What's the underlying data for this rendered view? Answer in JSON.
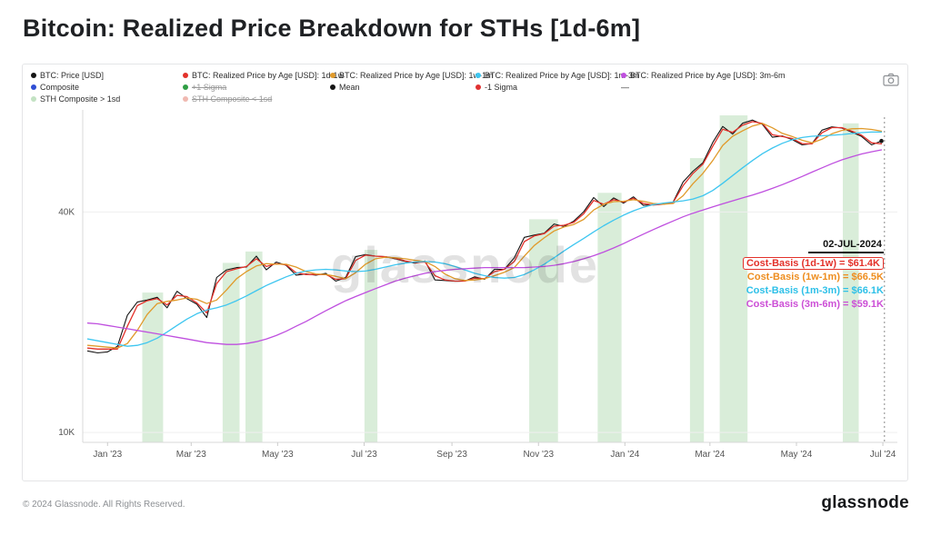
{
  "header": {
    "title": "Bitcoin: Realized Price Breakdown for STHs [1d-6m]"
  },
  "watermark": {
    "text": "glassnode"
  },
  "toolbar": {
    "camera_icon": "camera"
  },
  "legend": {
    "rows": [
      {
        "items": [
          {
            "label": "BTC: Price [USD]",
            "color": "#151515",
            "struck": false
          },
          {
            "label": "BTC: Realized Price by Age [USD]: 1d-1w",
            "color": "#e3312a",
            "struck": false
          },
          {
            "label": "BTC: Realized Price by Age [USD]: 1w-1m",
            "color": "#e09a2a",
            "struck": false
          },
          {
            "label": "BTC: Realized Price by Age [USD]: 1m-3m",
            "color": "#3ec6f0",
            "struck": false
          },
          {
            "label": "BTC: Realized Price by Age [USD]: 3m-6m",
            "color": "#bf4fdf",
            "struck": false
          }
        ]
      },
      {
        "items": [
          {
            "label": "Composite",
            "color": "#2f4ed4",
            "struck": false
          },
          {
            "label": "+1 Sigma",
            "color": "#2f9e44",
            "struck": true
          },
          {
            "label": "Mean",
            "color": "#151515",
            "struck": false
          },
          {
            "label": "-1 Sigma",
            "color": "#e03131",
            "struck": false
          },
          {
            "label": "—",
            "color": null,
            "struck": false
          }
        ]
      },
      {
        "items": [
          {
            "label": "STH Composite > 1sd",
            "color": "#c3e2c3",
            "struck": false
          },
          {
            "label": "STH Composite < 1sd",
            "color": "#f0b9b1",
            "struck": true
          }
        ]
      }
    ]
  },
  "chart_data": {
    "type": "line",
    "title": "Bitcoin: Realized Price Breakdown for STHs [1d-6m]",
    "y_unit": "USD (thousands)",
    "y_scale": "log",
    "y_domain": [
      9.4,
      76
    ],
    "x_unit": "weeks since 2023-01-01",
    "x_start_week": -2,
    "x_domain": [
      -2.5,
      79.6
    ],
    "x_ticks": [
      {
        "w": 0,
        "label": "Jan '23"
      },
      {
        "w": 8.43,
        "label": "Mar '23"
      },
      {
        "w": 17.14,
        "label": "May '23"
      },
      {
        "w": 25.86,
        "label": "Jul '23"
      },
      {
        "w": 34.71,
        "label": "Sep '23"
      },
      {
        "w": 43.43,
        "label": "Nov '23"
      },
      {
        "w": 52.14,
        "label": "Jan '24"
      },
      {
        "w": 60.71,
        "label": "Mar '24"
      },
      {
        "w": 69.43,
        "label": "May '24"
      },
      {
        "w": 78.14,
        "label": "Jul '24"
      }
    ],
    "y_ticks": [
      {
        "v": 40,
        "label": "40K"
      },
      {
        "v": 10,
        "label": "10K"
      }
    ],
    "series": [
      {
        "name": "BTC: Price [USD]",
        "slug": "btc-price",
        "color": "#151515",
        "width": 1.1,
        "values": [
          16.7,
          16.5,
          16.6,
          17.2,
          20.9,
          22.7,
          23.0,
          23.4,
          21.9,
          24.3,
          23.2,
          22.4,
          20.6,
          26.5,
          27.8,
          28.2,
          28.3,
          30.3,
          27.8,
          29.2,
          28.6,
          26.9,
          27.1,
          26.9,
          27.2,
          25.9,
          26.5,
          30.2,
          30.6,
          30.3,
          30.2,
          29.8,
          29.3,
          29.0,
          29.4,
          26.1,
          26.0,
          25.9,
          25.9,
          26.6,
          26.2,
          27.9,
          27.9,
          30.0,
          34.1,
          34.6,
          35.0,
          37.1,
          36.5,
          37.8,
          40.1,
          43.8,
          41.4,
          43.7,
          42.3,
          44.0,
          41.7,
          41.9,
          42.1,
          42.6,
          48.3,
          51.7,
          54.5,
          62.0,
          68.5,
          65.3,
          69.9,
          71.3,
          69.4,
          64.0,
          64.5,
          63.1,
          61.0,
          61.5,
          66.9,
          68.3,
          67.8,
          66.1,
          64.3,
          61.0,
          62.5
        ]
      },
      {
        "name": "BTC: Realized Price by Age [USD]: 1d-1w",
        "slug": "realized-1d-1w",
        "color": "#e3312a",
        "width": 1.3,
        "values": [
          17.0,
          16.9,
          16.9,
          16.9,
          19.5,
          22.2,
          22.9,
          23.2,
          22.3,
          23.7,
          23.5,
          22.6,
          21.2,
          25.5,
          27.5,
          28.0,
          28.4,
          29.8,
          28.4,
          28.9,
          28.7,
          27.3,
          27.0,
          27.0,
          27.0,
          26.2,
          26.3,
          29.5,
          30.5,
          30.3,
          30.2,
          29.9,
          29.4,
          29.1,
          29.2,
          26.8,
          26.1,
          25.9,
          25.9,
          26.4,
          26.3,
          27.5,
          27.9,
          29.3,
          33.2,
          34.4,
          34.9,
          36.6,
          36.8,
          37.5,
          39.6,
          43.0,
          42.0,
          43.2,
          42.6,
          43.6,
          42.2,
          41.8,
          42.0,
          42.5,
          47.2,
          51.0,
          54.0,
          60.5,
          67.3,
          66.0,
          69.0,
          70.6,
          69.8,
          65.0,
          64.3,
          63.5,
          61.5,
          61.4,
          65.8,
          68.0,
          68.0,
          66.5,
          64.8,
          61.8,
          61.4
        ]
      },
      {
        "name": "BTC: Realized Price by Age [USD]: 1w-1m",
        "slug": "realized-1w-1m",
        "color": "#e09a2a",
        "width": 1.3,
        "values": [
          17.3,
          17.2,
          17.1,
          17.0,
          17.5,
          19.0,
          21.0,
          22.5,
          22.8,
          23.0,
          23.3,
          23.1,
          22.5,
          23.0,
          24.5,
          26.3,
          27.5,
          28.5,
          28.9,
          28.8,
          28.8,
          28.3,
          27.5,
          27.1,
          27.0,
          26.7,
          26.3,
          27.3,
          28.8,
          29.8,
          30.1,
          30.0,
          29.8,
          29.5,
          29.3,
          28.4,
          27.1,
          26.3,
          26.0,
          26.1,
          26.3,
          26.8,
          27.4,
          28.2,
          30.3,
          32.4,
          34.0,
          35.5,
          36.4,
          37.0,
          38.2,
          40.5,
          42.0,
          42.7,
          42.8,
          43.2,
          42.8,
          42.2,
          42.0,
          42.2,
          44.3,
          47.8,
          51.0,
          55.3,
          60.8,
          64.4,
          66.6,
          68.7,
          69.8,
          67.9,
          65.6,
          64.3,
          62.8,
          61.8,
          63.2,
          65.4,
          66.8,
          67.5,
          67.6,
          67.2,
          66.5
        ]
      },
      {
        "name": "BTC: Realized Price by Age [USD]: 1m-3m",
        "slug": "realized-1m-3m",
        "color": "#3ec6f0",
        "width": 1.3,
        "values": [
          18.0,
          17.8,
          17.6,
          17.4,
          17.2,
          17.3,
          17.6,
          18.1,
          18.8,
          19.6,
          20.4,
          21.1,
          21.6,
          21.9,
          22.3,
          22.9,
          23.6,
          24.4,
          25.2,
          25.9,
          26.6,
          27.2,
          27.6,
          27.8,
          27.9,
          27.8,
          27.6,
          27.5,
          27.6,
          27.9,
          28.3,
          28.7,
          29.0,
          29.2,
          29.3,
          29.2,
          28.9,
          28.4,
          27.8,
          27.2,
          26.8,
          26.5,
          26.4,
          26.5,
          27.0,
          27.8,
          28.8,
          30.0,
          31.3,
          32.6,
          33.9,
          35.3,
          36.7,
          38.0,
          39.2,
          40.3,
          41.2,
          41.9,
          42.3,
          42.6,
          42.9,
          43.4,
          44.3,
          45.8,
          47.9,
          50.3,
          52.8,
          55.3,
          57.7,
          59.8,
          61.6,
          63.0,
          63.9,
          64.4,
          64.6,
          64.8,
          65.1,
          65.5,
          65.9,
          66.1,
          66.1
        ]
      },
      {
        "name": "BTC: Realized Price by Age [USD]: 3m-6m",
        "slug": "realized-3m-6m",
        "color": "#bf4fdf",
        "width": 1.3,
        "values": [
          19.9,
          19.8,
          19.6,
          19.4,
          19.2,
          19.0,
          18.8,
          18.6,
          18.4,
          18.2,
          18.0,
          17.8,
          17.6,
          17.5,
          17.4,
          17.4,
          17.5,
          17.7,
          18.0,
          18.4,
          18.9,
          19.5,
          20.1,
          20.8,
          21.5,
          22.2,
          22.9,
          23.5,
          24.1,
          24.7,
          25.3,
          25.9,
          26.4,
          26.8,
          27.2,
          27.5,
          27.7,
          27.9,
          28.0,
          28.1,
          28.2,
          28.2,
          28.2,
          28.2,
          28.2,
          28.3,
          28.4,
          28.6,
          28.9,
          29.3,
          29.8,
          30.4,
          31.1,
          31.9,
          32.8,
          33.8,
          34.8,
          35.8,
          36.8,
          37.8,
          38.8,
          39.7,
          40.5,
          41.3,
          42.1,
          42.9,
          43.7,
          44.5,
          45.4,
          46.4,
          47.5,
          48.7,
          50.0,
          51.4,
          52.8,
          54.2,
          55.5,
          56.6,
          57.6,
          58.4,
          59.1
        ]
      }
    ],
    "bands": {
      "label": "STH Composite > 1sd",
      "color": "#cfe9cf",
      "ranges": [
        [
          3.5,
          5.6
        ],
        [
          11.6,
          13.3
        ],
        [
          13.9,
          15.6
        ],
        [
          25.9,
          27.2
        ],
        [
          42.5,
          45.4
        ],
        [
          49.4,
          51.8
        ],
        [
          58.7,
          60.1
        ],
        [
          61.7,
          64.5
        ],
        [
          74.1,
          75.7
        ]
      ]
    },
    "marker": {
      "week": 78.3,
      "date_label": "02-JUL-2024",
      "lines": [
        {
          "text": "Cost-Basis (1d-1w) = $61.4K",
          "color": "#e3312a",
          "boxed": true
        },
        {
          "text": "Cost-Basis (1w-1m) = $66.5K",
          "color": "#ee8c1e",
          "boxed": false
        },
        {
          "text": "Cost-Basis (1m-3m) = $66.1K",
          "color": "#2ec0e8",
          "boxed": false
        },
        {
          "text": "Cost-Basis (3m-6m) = $59.1K",
          "color": "#cc4fd6",
          "boxed": false
        }
      ]
    }
  },
  "footer": {
    "copyright": "© 2024 Glassnode. All Rights Reserved.",
    "brand": "glassnode"
  }
}
